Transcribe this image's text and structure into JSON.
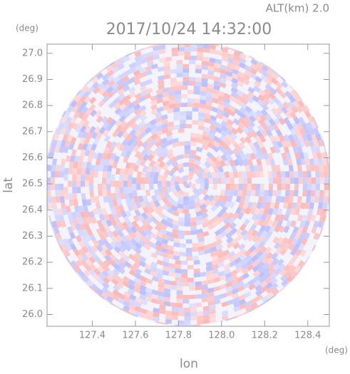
{
  "chart_data": {
    "type": "radar-ppi",
    "title": "2017/10/24 14:32:00",
    "subtitle": "ALT(km) 2.0",
    "x_label": "lon",
    "y_label": "lat",
    "x_unit": "(deg)",
    "y_unit": "(deg)",
    "xlim": [
      127.19,
      128.5
    ],
    "ylim": [
      25.955,
      27.035
    ],
    "xticks": [
      127.4,
      127.6,
      127.8,
      {
        "value": 128,
        "label": "128.0"
      },
      128.2,
      128.4
    ],
    "yticks": [
      {
        "value": 26,
        "label": "26.0"
      },
      26.1,
      26.2,
      26.3,
      26.4,
      26.5,
      26.6,
      26.7,
      26.8,
      26.9,
      {
        "value": 27,
        "label": "27.0"
      }
    ]
  }
}
